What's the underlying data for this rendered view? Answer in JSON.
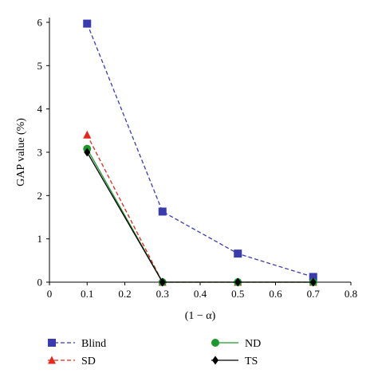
{
  "chart_data": {
    "type": "line",
    "title": "",
    "xlabel": "(1 − α)",
    "ylabel": "GAP value (%)",
    "xlim": [
      0,
      0.8
    ],
    "ylim": [
      0,
      6
    ],
    "xticks": [
      0,
      0.1,
      0.2,
      0.3,
      0.4,
      0.5,
      0.6,
      0.7,
      0.8
    ],
    "xtick_labels": [
      "0",
      "0.1",
      "0.2",
      "0.3",
      "0.4",
      "0.5",
      "0.6",
      "0.7",
      "0.8"
    ],
    "yticks": [
      0,
      1,
      2,
      3,
      4,
      5,
      6
    ],
    "ytick_labels": [
      "0",
      "1",
      "2",
      "3",
      "4",
      "5",
      "6"
    ],
    "grid": false,
    "legend_position": "bottom",
    "series": [
      {
        "name": "Blind",
        "color": "#3b3bb0",
        "marker": "square",
        "line": "dashed",
        "x": [
          0.1,
          0.3,
          0.5,
          0.7
        ],
        "y": [
          5.97,
          1.63,
          0.66,
          0.12
        ]
      },
      {
        "name": "SD",
        "color": "#e8261c",
        "marker": "triangle",
        "line": "dashed",
        "x": [
          0.1,
          0.3,
          0.5,
          0.7
        ],
        "y": [
          3.4,
          0.0,
          0.0,
          0.0
        ]
      },
      {
        "name": "ND",
        "color": "#1a9a2a",
        "marker": "circle",
        "line": "solid",
        "x": [
          0.1,
          0.3,
          0.5,
          0.7
        ],
        "y": [
          3.08,
          0.0,
          0.0,
          0.0
        ]
      },
      {
        "name": "TS",
        "color": "#000000",
        "marker": "diamond",
        "line": "solid",
        "x": [
          0.1,
          0.3,
          0.5,
          0.7
        ],
        "y": [
          3.0,
          0.0,
          0.0,
          0.0
        ]
      }
    ]
  }
}
